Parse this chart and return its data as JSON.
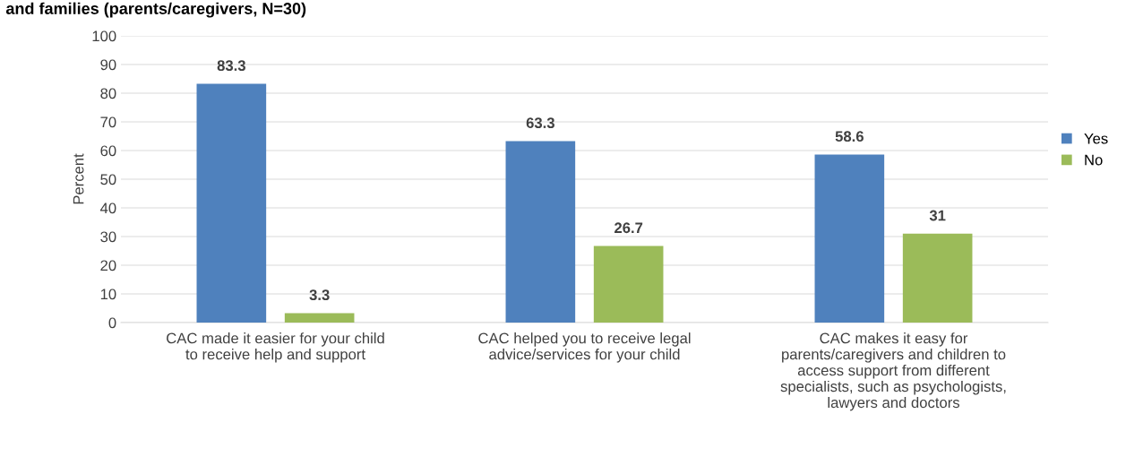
{
  "chart_data": {
    "type": "bar",
    "title": "and families (parents/caregivers, N=30)",
    "ylabel": "Percent",
    "categories": [
      "CAC made it easier for your child\nto receive help and support",
      "CAC helped you to receive legal\nadvice/services for your child",
      "CAC makes it easy for\nparents/caregivers and children to\naccess support from different\nspecialists, such as psychologists,\nlawyers and doctors"
    ],
    "series": [
      {
        "name": "Yes",
        "color": "#4f81bd",
        "values": [
          83.3,
          63.3,
          58.6
        ]
      },
      {
        "name": "No",
        "color": "#9bbb59",
        "values": [
          3.3,
          26.7,
          31
        ]
      }
    ],
    "ylim": [
      0,
      100
    ],
    "yticks": [
      0,
      10,
      20,
      30,
      40,
      50,
      60,
      70,
      80,
      90,
      100
    ],
    "grid": "y",
    "legend": "right",
    "data_labels": true
  }
}
